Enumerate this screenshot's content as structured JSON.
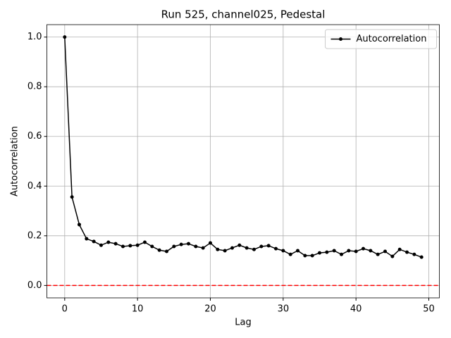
{
  "chart_data": {
    "type": "line",
    "title": "Run 525, channel025, Pedestal",
    "x_label": "Lag",
    "y_label": "Autocorrelation",
    "x": [
      0,
      1,
      2,
      3,
      4,
      5,
      6,
      7,
      8,
      9,
      10,
      11,
      12,
      13,
      14,
      15,
      16,
      17,
      18,
      19,
      20,
      21,
      22,
      23,
      24,
      25,
      26,
      27,
      28,
      29,
      30,
      31,
      32,
      33,
      34,
      35,
      36,
      37,
      38,
      39,
      40,
      41,
      42,
      43,
      44,
      45,
      46,
      47,
      48,
      49
    ],
    "series": [
      {
        "name": "Autocorrelation",
        "color": "#000000",
        "values": [
          1.0,
          0.356,
          0.245,
          0.188,
          0.177,
          0.162,
          0.174,
          0.168,
          0.157,
          0.16,
          0.162,
          0.174,
          0.157,
          0.142,
          0.137,
          0.157,
          0.165,
          0.168,
          0.157,
          0.151,
          0.171,
          0.145,
          0.14,
          0.151,
          0.162,
          0.151,
          0.145,
          0.157,
          0.16,
          0.148,
          0.14,
          0.125,
          0.14,
          0.12,
          0.12,
          0.131,
          0.134,
          0.14,
          0.125,
          0.14,
          0.137,
          0.148,
          0.14,
          0.125,
          0.137,
          0.117,
          0.145,
          0.134,
          0.125,
          0.114
        ]
      }
    ],
    "hline": {
      "value": 0,
      "color": "#ff0000"
    },
    "xlim": [
      -2.45,
      51.45
    ],
    "ylim": [
      -0.05,
      1.05
    ],
    "xticks": [
      0,
      10,
      20,
      30,
      40,
      50
    ],
    "yticks": [
      {
        "value": 0,
        "label": "0.0"
      },
      {
        "value": 0.2,
        "label": "0.2"
      },
      {
        "value": 0.4,
        "label": "0.4"
      },
      {
        "value": 0.6,
        "label": "0.6"
      },
      {
        "value": 0.8,
        "label": "0.8"
      },
      {
        "value": 1.0,
        "label": "1.0"
      }
    ],
    "grid": true,
    "legend": "upper right"
  }
}
